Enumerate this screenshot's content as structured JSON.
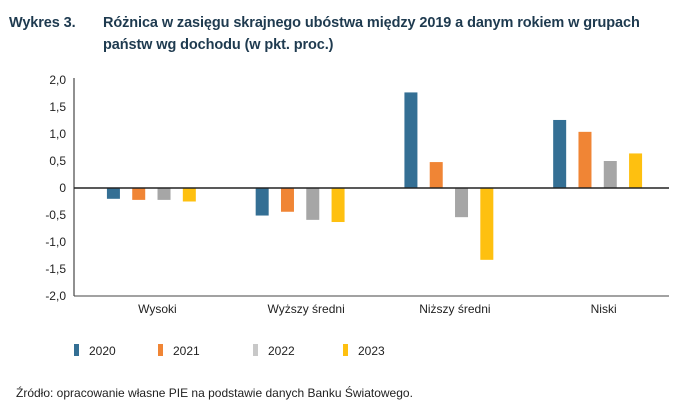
{
  "title": {
    "label": "Wykres 3.",
    "line1": "Różnica w zasięgu skrajnego ubóstwa między 2019 a danym rokiem w grupach",
    "line2": "państw wg dochodu (w pkt. proc.)"
  },
  "source": "Źródło: opracowanie własne PIE na podstawie danych Banku Światowego.",
  "chart_data": {
    "type": "bar",
    "title": "Różnica w zasięgu skrajnego ubóstwa między 2019 a danym rokiem w grupach państw wg dochodu (w pkt. proc.)",
    "xlabel": "",
    "ylabel": "",
    "ylim": [
      -2.0,
      2.0
    ],
    "yticks": [
      2.0,
      1.5,
      1.0,
      0.5,
      0,
      -0.5,
      -1.0,
      -1.5,
      -2.0
    ],
    "ytick_labels": [
      "2,0",
      "1,5",
      "1,0",
      "0,5",
      "0",
      "-0,5",
      "-1,0",
      "-1,5",
      "-2,0"
    ],
    "grid": false,
    "legend_position": "bottom-left",
    "categories": [
      "Wysoki",
      "Wyższy średni",
      "Niższy średni",
      "Niski"
    ],
    "series": [
      {
        "name": "2020",
        "color": "#346f94",
        "values": [
          -0.2,
          -0.51,
          1.77,
          1.26
        ]
      },
      {
        "name": "2021",
        "color": "#f08535",
        "values": [
          -0.22,
          -0.44,
          0.48,
          1.04
        ]
      },
      {
        "name": "2022",
        "color": "#a6a6a6",
        "values": [
          -0.22,
          -0.59,
          -0.54,
          0.5
        ]
      },
      {
        "name": "2023",
        "color": "#fec010",
        "values": [
          -0.25,
          -0.63,
          -1.33,
          0.64
        ]
      }
    ],
    "legend_marker_colors": [
      "#346f94",
      "#f08535",
      "#c8c8c8",
      "#fec010"
    ]
  }
}
